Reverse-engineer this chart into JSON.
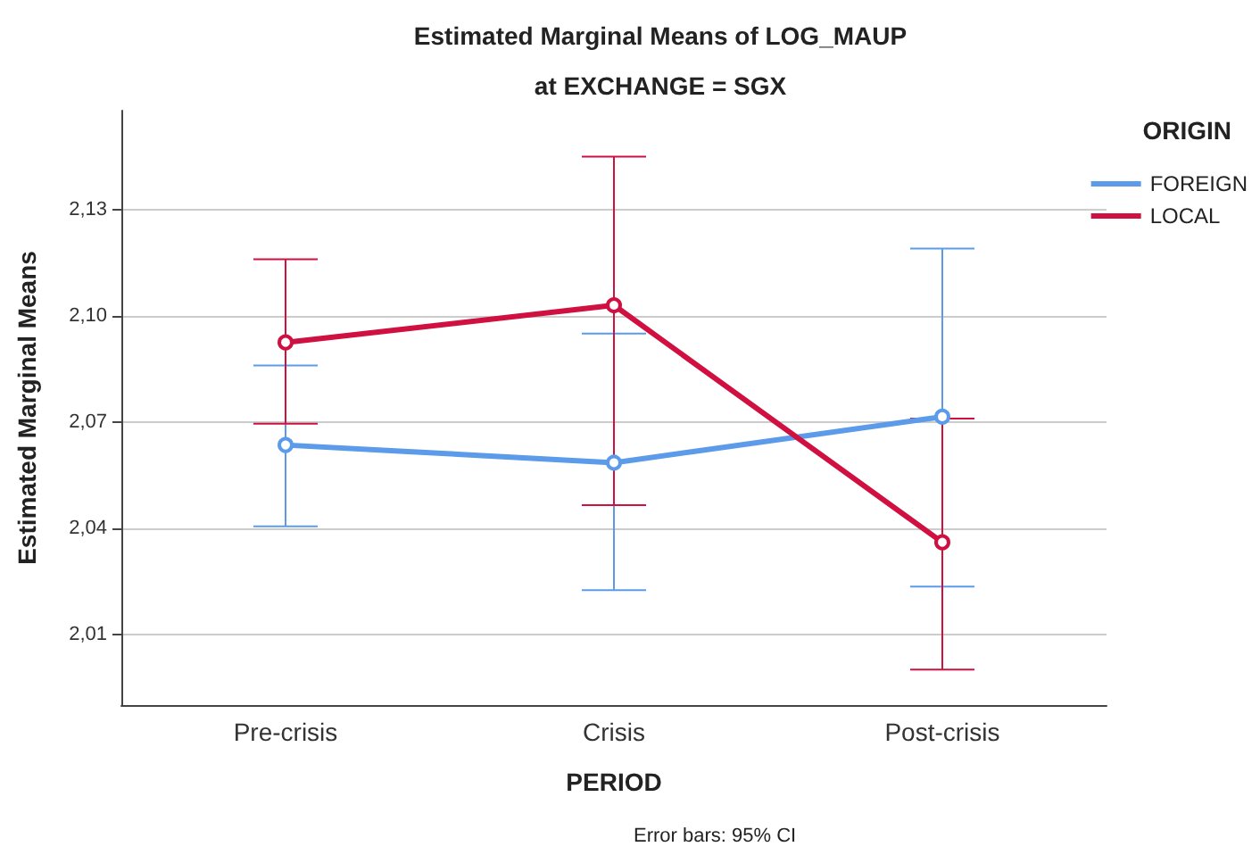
{
  "chart_data": {
    "type": "line",
    "title": "Estimated Marginal Means of LOG_MAUP",
    "subtitle": "at EXCHANGE = SGX",
    "xlabel": "PERIOD",
    "ylabel": "Estimated Marginal Means",
    "legend_title": "ORIGIN",
    "categories": [
      "Pre-crisis",
      "Crisis",
      "Post-crisis"
    ],
    "series": [
      {
        "name": "FOREIGN",
        "color": "#5b9bea",
        "values": [
          2.0635,
          2.0585,
          2.0715
        ],
        "errors": [
          [
            2.0405,
            2.086
          ],
          [
            2.0225,
            2.095
          ],
          [
            2.0235,
            2.119
          ]
        ]
      },
      {
        "name": "LOCAL",
        "color": "#d01040",
        "values": [
          2.0925,
          2.103,
          2.036
        ],
        "errors": [
          [
            2.0695,
            2.116
          ],
          [
            2.0465,
            2.145
          ],
          [
            2.0,
            2.071
          ]
        ]
      }
    ],
    "ylim": [
      1.99,
      2.158
    ],
    "yticks": [
      {
        "value": 2.01,
        "label": "2,01"
      },
      {
        "value": 2.04,
        "label": "2,04"
      },
      {
        "value": 2.07,
        "label": "2,07"
      },
      {
        "value": 2.1,
        "label": "2,10"
      },
      {
        "value": 2.13,
        "label": "2,13"
      }
    ],
    "grid": "y",
    "legend": "right",
    "marker": "circle",
    "line_style": "solid",
    "annotations": [
      "Error bars: 95% CI"
    ]
  }
}
